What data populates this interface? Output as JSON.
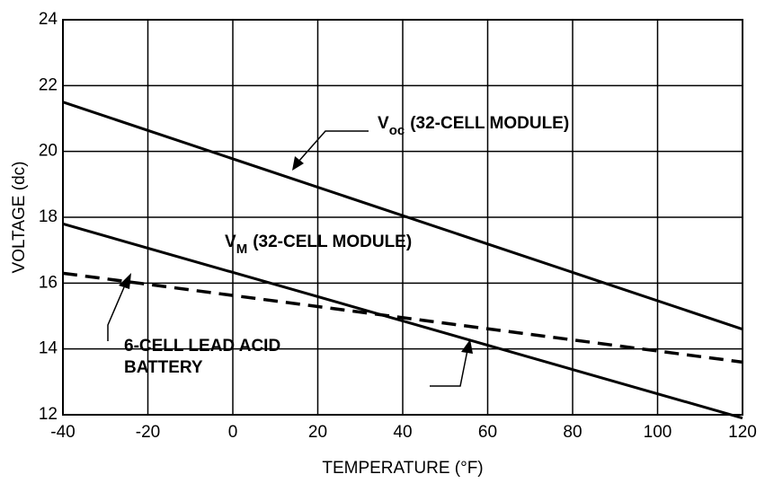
{
  "chart_data": {
    "type": "line",
    "x_label": "TEMPERATURE (°F)",
    "y_label": "VOLTAGE (dc)",
    "x": [
      -40,
      120
    ],
    "series": [
      {
        "name": "V_oc (32-CELL MODULE)",
        "color": "#000000",
        "dash": false,
        "values": [
          21.5,
          14.6
        ]
      },
      {
        "name": "V_M (32-CELL MODULE)",
        "color": "#000000",
        "dash": false,
        "values": [
          17.8,
          11.9
        ]
      },
      {
        "name": "6-CELL LEAD ACID BATTERY",
        "color": "#000000",
        "dash": true,
        "values": [
          16.3,
          13.6
        ]
      }
    ],
    "annotations": {
      "voc": {
        "main": "V",
        "sub": "oc",
        "rest": "(32-CELL MODULE)"
      },
      "vm": {
        "main": "V",
        "sub": "M",
        "rest": "(32-CELL MODULE)"
      },
      "battery": [
        "6-CELL LEAD ACID",
        "BATTERY"
      ]
    },
    "xlim": [
      -40,
      120
    ],
    "xticks": [
      -40,
      -20,
      0,
      20,
      40,
      60,
      80,
      100,
      120
    ],
    "ylim": [
      12,
      24
    ],
    "yticks": [
      12,
      14,
      16,
      18,
      20,
      22,
      24
    ],
    "grid": true
  }
}
